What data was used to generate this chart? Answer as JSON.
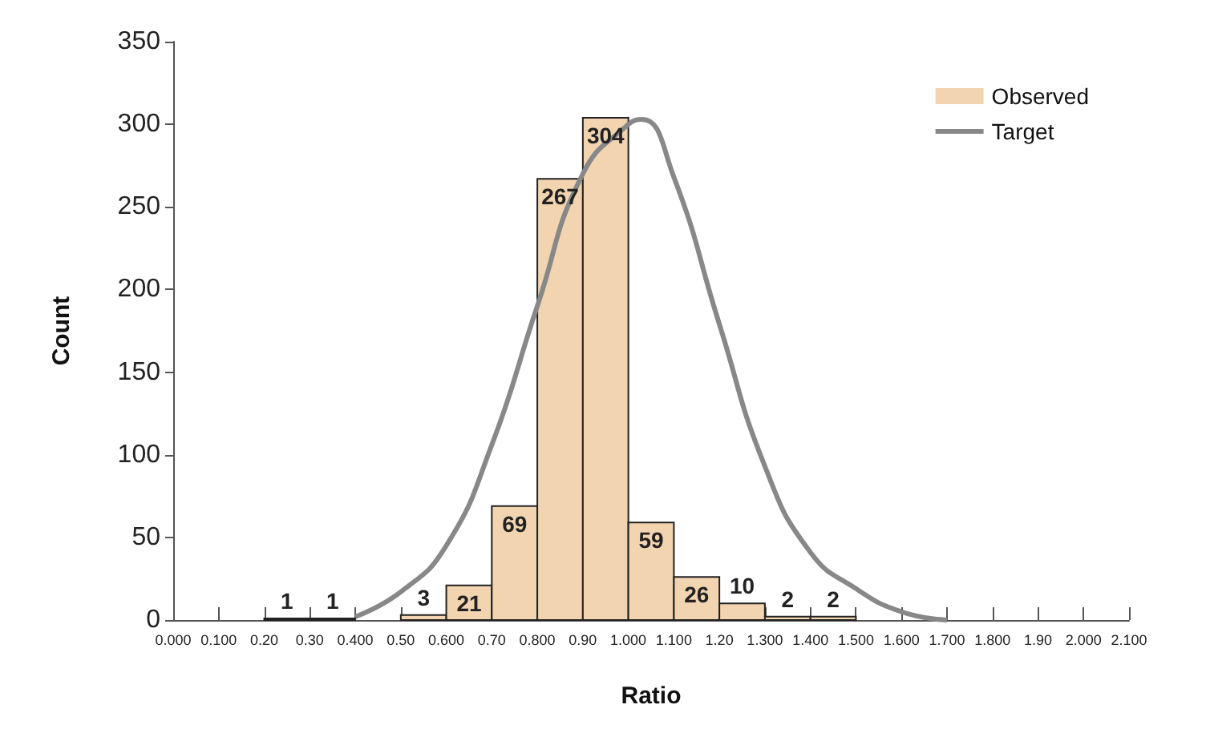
{
  "chart_data": {
    "type": "histogram",
    "xlabel": "Ratio",
    "ylabel": "Count",
    "bins": [
      0,
      0.1,
      0.2,
      0.3,
      0.4,
      0.5,
      0.6,
      0.7,
      0.8,
      0.9,
      1.0,
      1.1,
      1.2,
      1.3,
      1.4,
      1.5,
      1.6,
      1.7,
      1.8,
      1.9,
      2.0,
      2.1
    ],
    "series": [
      {
        "name": "Observed",
        "color": "#f2d4b0",
        "values": [
          0,
          0,
          1,
          1,
          0,
          3,
          21,
          69,
          267,
          304,
          59,
          26,
          10,
          2,
          2,
          0,
          0,
          0,
          0,
          0,
          0
        ],
        "value_labels": [
          null,
          null,
          "1",
          "1",
          null,
          "3",
          "21",
          "69",
          "267",
          "304",
          "59",
          "26",
          "10",
          "2",
          "2",
          null,
          null,
          null,
          null,
          null,
          null
        ]
      },
      {
        "name": "Target",
        "type": "line",
        "color": "#888888",
        "x": [
          0.4,
          0.5,
          0.6,
          0.7,
          0.8,
          0.9,
          1.0,
          1.03,
          1.1,
          1.2,
          1.3,
          1.4,
          1.5,
          1.6,
          1.7
        ],
        "values": [
          2,
          17,
          45,
          106,
          190,
          270,
          300,
          303,
          268,
          179,
          93,
          41,
          19,
          5,
          0
        ]
      }
    ],
    "xlim": [
      0,
      2.1
    ],
    "xticks": [
      {
        "value": 0,
        "label": "0.000"
      },
      {
        "value": 0.1,
        "label": "0.100"
      },
      {
        "value": 0.2,
        "label": "0.20"
      },
      {
        "value": 0.3,
        "label": "0.30"
      },
      {
        "value": 0.4,
        "label": "0.400"
      },
      {
        "value": 0.5,
        "label": "0.50"
      },
      {
        "value": 0.6,
        "label": "0.600"
      },
      {
        "value": 0.7,
        "label": "0.70"
      },
      {
        "value": 0.8,
        "label": "0.800"
      },
      {
        "value": 0.9,
        "label": "0.90"
      },
      {
        "value": 1.0,
        "label": "1.000"
      },
      {
        "value": 1.1,
        "label": "1.100"
      },
      {
        "value": 1.2,
        "label": "1.20"
      },
      {
        "value": 1.3,
        "label": "1.300"
      },
      {
        "value": 1.4,
        "label": "1.400"
      },
      {
        "value": 1.5,
        "label": "1.500"
      },
      {
        "value": 1.6,
        "label": "1.600"
      },
      {
        "value": 1.7,
        "label": "1.700"
      },
      {
        "value": 1.8,
        "label": "1.800"
      },
      {
        "value": 1.9,
        "label": "1.90"
      },
      {
        "value": 2.0,
        "label": "2.000"
      },
      {
        "value": 2.1,
        "label": "2.100"
      }
    ],
    "ylim": [
      0,
      350
    ],
    "yticks": [
      0,
      50,
      100,
      150,
      200,
      250,
      300,
      350
    ],
    "grid": false,
    "legend": "top right",
    "marker": "none",
    "line_style": "solid"
  }
}
